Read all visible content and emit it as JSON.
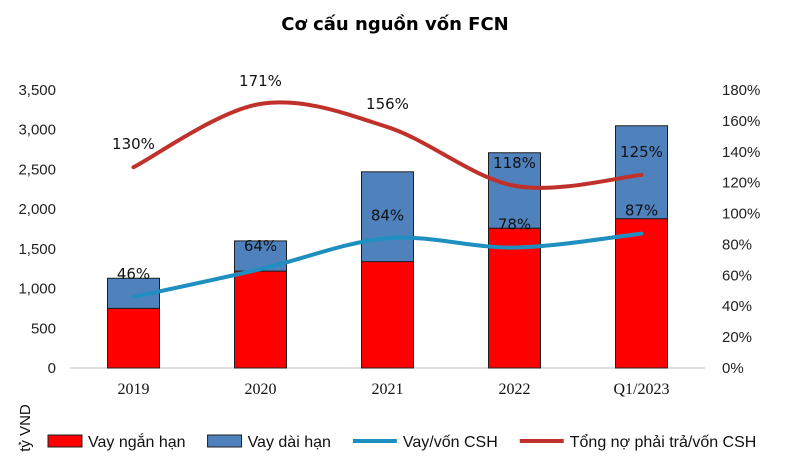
{
  "chart_data": {
    "type": "bar",
    "title": "Cơ cấu nguồn vốn FCN",
    "ylabel": "tỷ VND",
    "categories": [
      "2019",
      "2020",
      "2021",
      "2022",
      "Q1/2023"
    ],
    "ylim": [
      0,
      3500
    ],
    "y_ticks": [
      "0",
      "500",
      "1,000",
      "1,500",
      "2,000",
      "2,500",
      "3,000",
      "3,500"
    ],
    "y2lim": [
      0,
      1.8
    ],
    "y2_ticks": [
      "0%",
      "20%",
      "40%",
      "60%",
      "80%",
      "100%",
      "120%",
      "140%",
      "160%",
      "180%"
    ],
    "stacked": true,
    "series": [
      {
        "name": "Vay ngắn hạn",
        "kind": "bar",
        "color": "#ff0000",
        "values": [
          750,
          1220,
          1340,
          1760,
          1880
        ]
      },
      {
        "name": "Vay dài hạn",
        "kind": "bar",
        "color": "#4f81bd",
        "values": [
          380,
          380,
          1130,
          950,
          1170
        ]
      },
      {
        "name": "Vay/vốn CSH",
        "kind": "line",
        "axis": "right",
        "color": "#1f8fc0",
        "values": [
          0.46,
          0.64,
          0.84,
          0.78,
          0.87
        ],
        "labels": [
          "46%",
          "64%",
          "84%",
          "78%",
          "87%"
        ]
      },
      {
        "name": "Tổng nợ phải trả/vốn CSH",
        "kind": "line",
        "axis": "right",
        "color": "#c0312b",
        "values": [
          1.3,
          1.71,
          1.56,
          1.18,
          1.25
        ],
        "labels": [
          "130%",
          "171%",
          "156%",
          "118%",
          "125%"
        ]
      }
    ],
    "grid": false,
    "legend_position": "bottom"
  }
}
